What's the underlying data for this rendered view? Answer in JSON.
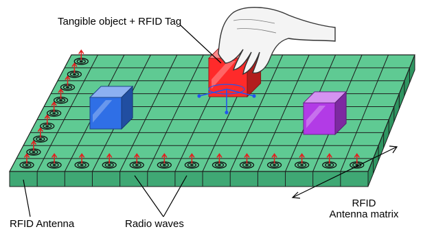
{
  "labels": {
    "tangible": "Tangible object + RFID Tag",
    "antenna": "RFID Antenna",
    "waves": "Radio waves",
    "matrix_line1": "RFID",
    "matrix_line2": "Antenna matrix"
  },
  "board": {
    "columns": 13,
    "rows": 9
  },
  "cubes": [
    {
      "name": "blue-cube",
      "color": "#2f6fe6"
    },
    {
      "name": "red-cube",
      "color": "#ff2a2a"
    },
    {
      "name": "purple-cube",
      "color": "#b23be6"
    }
  ],
  "colors": {
    "board_top": "#5fca93",
    "board_grid": "#1d1d1d",
    "board_side": "#3fa874",
    "antenna_arrow": "#e02020",
    "axis_arrows": "#2255ee"
  },
  "icons": {
    "hand": "hand-icon",
    "antenna": "antenna-coil-icon",
    "wave": "radio-wave-arrow-icon"
  }
}
